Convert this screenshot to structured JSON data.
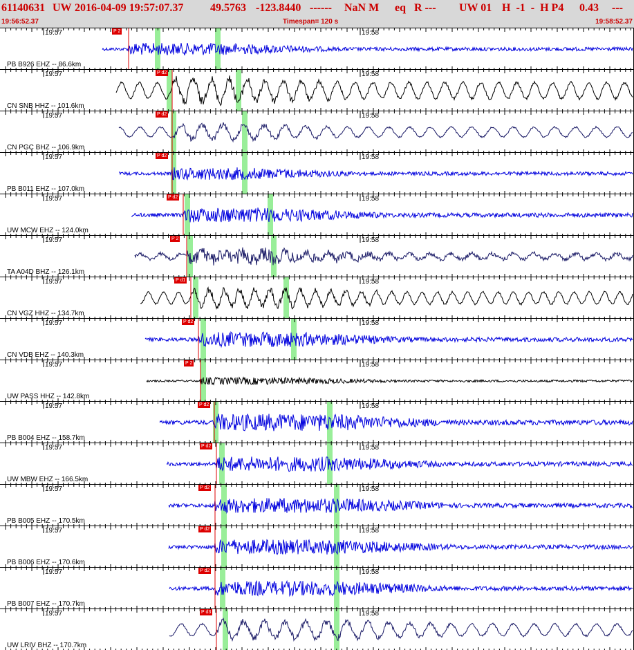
{
  "header": {
    "event_id": "61140631",
    "network": "UW",
    "origin_time": "2016-04-09 19:57:07.37",
    "lat": "49.5763",
    "lon": "-123.8440",
    "dashes": "------",
    "magnitude": "NaN M",
    "event_type": "eq",
    "review_flag": "R ---",
    "solution_source": "UW 01",
    "flags": "H  -1  -  H P4",
    "rms": "0.43",
    "more": "---",
    "start_time": "19:56:52.37",
    "timespan": "Timespan= 120 s",
    "end_time": "19:58:52.37"
  },
  "panels": [
    {
      "label": "PB B926 EHZ -- 86.6km",
      "color": "#0000dd",
      "pick_label": "P 2",
      "style": "hf",
      "amp": 10
    },
    {
      "label": "CN SNB HHZ -- 101.6km",
      "color": "#000000",
      "pick_label": "P d2",
      "style": "lf",
      "amp": 16
    },
    {
      "label": "CN PGC BHZ -- 106.9km",
      "color": "#1a1a66",
      "pick_label": "P d2",
      "style": "lf",
      "amp": 10
    },
    {
      "label": "PB B011 EHZ -- 107.0km",
      "color": "#0000dd",
      "pick_label": "P d2",
      "style": "hf",
      "amp": 10
    },
    {
      "label": "UW MCW EHZ -- 124.0km",
      "color": "#0000dd",
      "pick_label": "P d2",
      "style": "hf",
      "amp": 12
    },
    {
      "label": "TA A04D BHZ -- 126.1km",
      "color": "#1a1a66",
      "pick_label": "P 2",
      "style": "mix",
      "amp": 12
    },
    {
      "label": "CN VGZ HHZ -- 134.7km",
      "color": "#000000",
      "pick_label": "P d1",
      "style": "lf",
      "amp": 12
    },
    {
      "label": "CN VDB EHZ -- 140.3km",
      "color": "#0000dd",
      "pick_label": "P d2",
      "style": "hf",
      "amp": 12
    },
    {
      "label": "UW PASS HHZ -- 142.8km",
      "color": "#000000",
      "pick_label": "P 2",
      "style": "hf",
      "amp": 6
    },
    {
      "label": "PB B004 EHZ -- 158.7km",
      "color": "#0000dd",
      "pick_label": "P d2",
      "style": "hf",
      "amp": 14
    },
    {
      "label": "UW MBW EHZ -- 166.5km",
      "color": "#0000dd",
      "pick_label": "P d2",
      "style": "hf",
      "amp": 12
    },
    {
      "label": "PB B005 EHZ -- 170.5km",
      "color": "#0000dd",
      "pick_label": "P d2",
      "style": "hf",
      "amp": 12
    },
    {
      "label": "PB B006 EHZ -- 170.6km",
      "color": "#0000dd",
      "pick_label": "P d2",
      "style": "hf",
      "amp": 12
    },
    {
      "label": "PB B007 EHZ -- 170.7km",
      "color": "#0000dd",
      "pick_label": "P d2",
      "style": "hf",
      "amp": 12
    },
    {
      "label": "UW LRIV BHZ -- 170.7km",
      "color": "#1a1a66",
      "pick_label": "P d3",
      "style": "lf",
      "amp": 12
    }
  ],
  "minute_labels": [
    "19:57",
    "19:58"
  ],
  "colors": {
    "pick_marker": "#dd0000",
    "phase_window": "#99ee99",
    "header_bg": "#d8d8d8",
    "header_text": "#cc0000"
  }
}
